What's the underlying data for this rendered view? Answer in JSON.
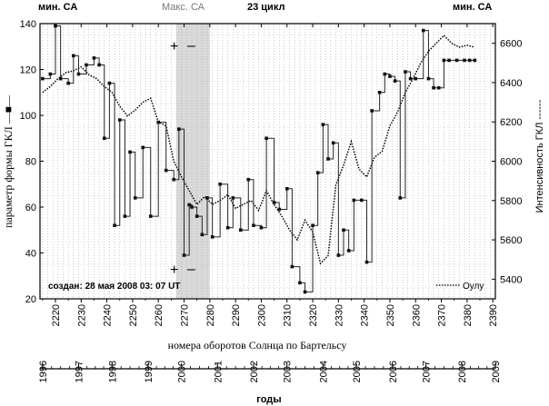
{
  "header": {
    "min_left": "мин. СА",
    "max": "Макс. СА",
    "cycle": "23 цикл",
    "min_right": "мин. СА"
  },
  "annotation": {
    "created": "создан: 28  мая  2008  03: 07 UT",
    "legend_oulu": "Оулу",
    "plus_top": "+",
    "minus_top": "–",
    "plus_bottom": "+",
    "minus_bottom": "–"
  },
  "chart_data": {
    "type": "line",
    "title": "23 цикл",
    "xlabel": "номера оборотов Солнца по Бартельсу",
    "ylabel_left": "параметр формы ГКЛ —■—",
    "ylabel_right": "Интенсивность ГКЛ ------",
    "xlabel_bottom": "годы",
    "xlim": [
      2214,
      2391
    ],
    "ylim_left": [
      20,
      140
    ],
    "ylim_right": [
      5300,
      6700
    ],
    "x_ticks": [
      2220,
      2230,
      2240,
      2250,
      2260,
      2270,
      2280,
      2290,
      2300,
      2310,
      2320,
      2330,
      2340,
      2350,
      2360,
      2370,
      2380,
      2390
    ],
    "y_ticks_left": [
      20,
      40,
      60,
      80,
      100,
      120,
      140
    ],
    "y_ticks_right": [
      5400,
      5600,
      5800,
      6000,
      6200,
      6400,
      6600
    ],
    "year_ticks": [
      {
        "label": "1996",
        "rotation": 2215
      },
      {
        "label": "1997",
        "rotation": 2229
      },
      {
        "label": "1998",
        "rotation": 2242
      },
      {
        "label": "1999",
        "rotation": 2256
      },
      {
        "label": "2000",
        "rotation": 2269
      },
      {
        "label": "2001",
        "rotation": 2283
      },
      {
        "label": "2002",
        "rotation": 2297
      },
      {
        "label": "2003",
        "rotation": 2310
      },
      {
        "label": "2004",
        "rotation": 2324
      },
      {
        "label": "2005",
        "rotation": 2337
      },
      {
        "label": "2006",
        "rotation": 2351
      },
      {
        "label": "2007",
        "rotation": 2364
      },
      {
        "label": "2008",
        "rotation": 2378
      },
      {
        "label": "2009",
        "rotation": 2391
      }
    ],
    "shaded_region": {
      "x_from": 2267,
      "x_to": 2280,
      "label": "Макс. СА"
    },
    "series": [
      {
        "name": "параметр формы ГКЛ",
        "axis": "left",
        "style": "step-squares",
        "x": [
          2215,
          2218,
          2220,
          2222,
          2225,
          2227,
          2229,
          2232,
          2235,
          2237,
          2239,
          2241,
          2243,
          2245,
          2247,
          2249,
          2251,
          2254,
          2257,
          2260,
          2263,
          2266,
          2268,
          2270,
          2272,
          2273,
          2275,
          2277,
          2279,
          2281,
          2284,
          2287,
          2289,
          2292,
          2295,
          2297,
          2300,
          2302,
          2305,
          2307,
          2310,
          2312,
          2315,
          2317,
          2320,
          2322,
          2324,
          2326,
          2328,
          2330,
          2332,
          2334,
          2336,
          2339,
          2341,
          2343,
          2346,
          2348,
          2350,
          2352,
          2354,
          2356,
          2358,
          2360,
          2363,
          2365,
          2367,
          2369,
          2371,
          2373,
          2376,
          2379,
          2381,
          2383
        ],
        "values": [
          116,
          118,
          139,
          116,
          114,
          126,
          118,
          122,
          125,
          122,
          90,
          114,
          52,
          98,
          56,
          84,
          64,
          86,
          56,
          97,
          76,
          72,
          94,
          39,
          61,
          60,
          56,
          48,
          64,
          47,
          70,
          51,
          64,
          50,
          72,
          52,
          51,
          90,
          62,
          59,
          68,
          34,
          27,
          23,
          52,
          75,
          96,
          81,
          88,
          39,
          50,
          41,
          63,
          63,
          36,
          102,
          110,
          118,
          117,
          115,
          64,
          119,
          116,
          116,
          137,
          116,
          112,
          112,
          124,
          124,
          124,
          124,
          124,
          124
        ]
      },
      {
        "name": "Оулу",
        "axis": "right",
        "style": "dotted",
        "x": [
          2215,
          2218,
          2221,
          2224,
          2227,
          2230,
          2233,
          2236,
          2239,
          2242,
          2245,
          2248,
          2251,
          2254,
          2257,
          2260,
          2263,
          2266,
          2269,
          2272,
          2275,
          2278,
          2281,
          2284,
          2287,
          2290,
          2293,
          2296,
          2299,
          2302,
          2305,
          2308,
          2311,
          2314,
          2317,
          2320,
          2323,
          2326,
          2329,
          2332,
          2335,
          2338,
          2341,
          2344,
          2347,
          2350,
          2353,
          2356,
          2359,
          2362,
          2365,
          2368,
          2371,
          2374,
          2377,
          2380,
          2383
        ],
        "values": [
          6350,
          6380,
          6420,
          6450,
          6460,
          6480,
          6440,
          6420,
          6380,
          6350,
          6280,
          6230,
          6260,
          6300,
          6320,
          6200,
          6180,
          6000,
          5920,
          5850,
          5780,
          5820,
          5780,
          5800,
          5830,
          5760,
          5780,
          5800,
          5750,
          5850,
          5780,
          5720,
          5650,
          5600,
          5700,
          5640,
          5480,
          5520,
          5880,
          5980,
          6100,
          5960,
          5920,
          6020,
          6050,
          6180,
          6250,
          6350,
          6420,
          6500,
          6560,
          6600,
          6640,
          6600,
          6580,
          6590,
          6580
        ]
      }
    ]
  }
}
